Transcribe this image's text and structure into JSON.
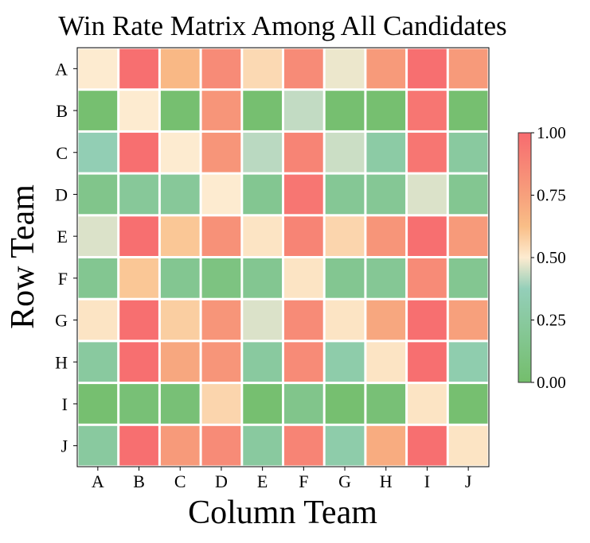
{
  "chart_data": {
    "type": "heatmap",
    "title": "Win Rate Matrix Among All Candidates",
    "xlabel": "Column Team",
    "ylabel": "Row Team",
    "x_categories": [
      "A",
      "B",
      "C",
      "D",
      "E",
      "F",
      "G",
      "H",
      "I",
      "J"
    ],
    "y_categories": [
      "A",
      "B",
      "C",
      "D",
      "E",
      "F",
      "G",
      "H",
      "I",
      "J"
    ],
    "values": [
      [
        0.5,
        0.98,
        0.65,
        0.85,
        0.55,
        0.85,
        0.48,
        0.78,
        0.98,
        0.78
      ],
      [
        0.02,
        0.5,
        0.02,
        0.8,
        0.02,
        0.43,
        0.02,
        0.02,
        0.95,
        0.02
      ],
      [
        0.35,
        0.98,
        0.5,
        0.8,
        0.42,
        0.88,
        0.44,
        0.28,
        0.95,
        0.25
      ],
      [
        0.15,
        0.22,
        0.22,
        0.5,
        0.18,
        0.95,
        0.2,
        0.2,
        0.46,
        0.18
      ],
      [
        0.46,
        0.98,
        0.6,
        0.82,
        0.52,
        0.88,
        0.56,
        0.8,
        0.98,
        0.78
      ],
      [
        0.18,
        0.6,
        0.18,
        0.1,
        0.18,
        0.52,
        0.18,
        0.2,
        0.85,
        0.18
      ],
      [
        0.52,
        0.98,
        0.58,
        0.8,
        0.46,
        0.85,
        0.52,
        0.72,
        0.98,
        0.75
      ],
      [
        0.25,
        0.98,
        0.72,
        0.8,
        0.25,
        0.85,
        0.3,
        0.52,
        0.98,
        0.32
      ],
      [
        0.02,
        0.05,
        0.05,
        0.56,
        0.02,
        0.15,
        0.02,
        0.05,
        0.52,
        0.02
      ],
      [
        0.25,
        0.98,
        0.78,
        0.85,
        0.25,
        0.88,
        0.3,
        0.7,
        0.98,
        0.52
      ]
    ],
    "zlim": [
      0,
      1
    ],
    "colorbar": {
      "ticks": [
        "0.00",
        "0.25",
        "0.50",
        "0.75",
        "1.00"
      ],
      "colors": [
        {
          "at": 0.0,
          "color": "#74be6c"
        },
        {
          "at": 0.375,
          "color": "#94cfb9"
        },
        {
          "at": 0.5,
          "color": "#fdebd0"
        },
        {
          "at": 0.625,
          "color": "#f9be87"
        },
        {
          "at": 0.75,
          "color": "#f7a07c"
        },
        {
          "at": 1.0,
          "color": "#f76b6f"
        }
      ],
      "position": "right"
    },
    "grid": false
  }
}
